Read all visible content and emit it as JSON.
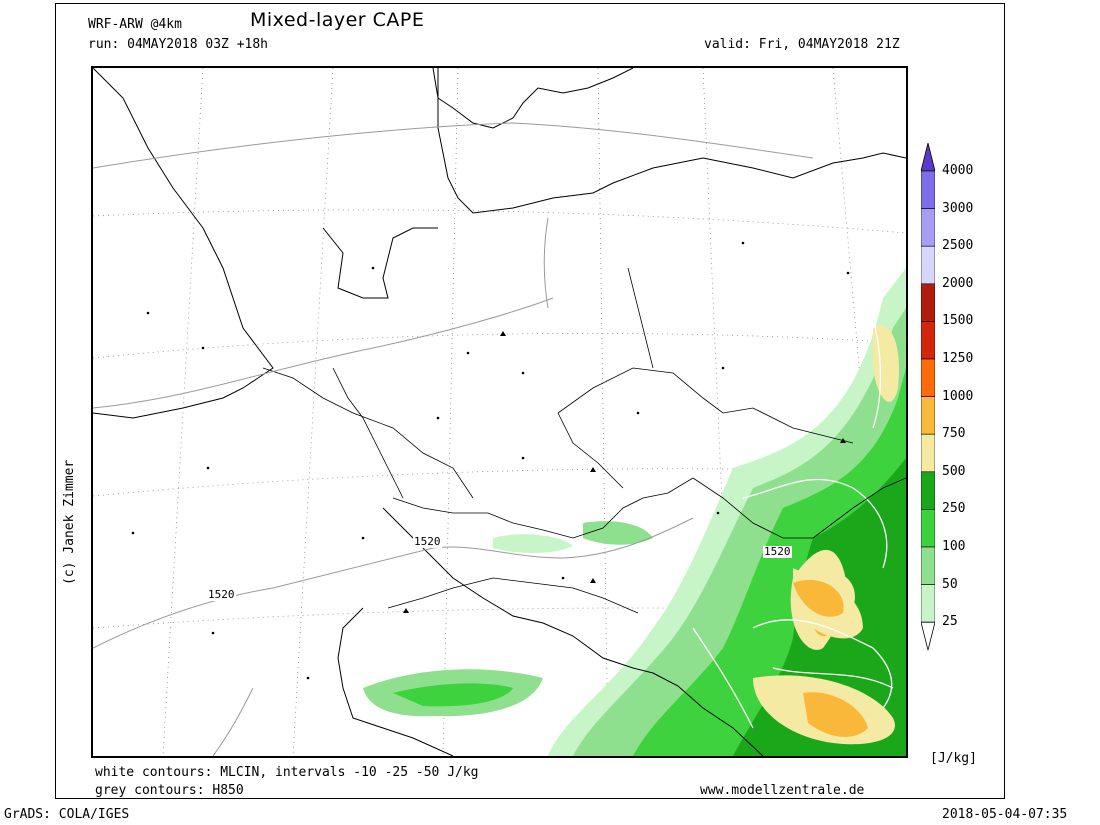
{
  "header": {
    "model": "WRF-ARW @4km",
    "title": "Mixed-layer CAPE",
    "run": "run: 04MAY2018 03Z +18h",
    "valid": "valid: Fri, 04MAY2018 21Z"
  },
  "footer": {
    "white_contours": "white contours: MLCIN, intervals -10 -25 -50 J/kg",
    "grey_contours": "grey contours: H850",
    "website": "www.modellzentrale.de",
    "grads": "GrADS: COLA/IGES",
    "timestamp": "2018-05-04-07:35"
  },
  "credit": "(c) Janek Zimmer",
  "map": {
    "contour_labels": [
      "1520",
      "1520",
      "1520"
    ]
  },
  "legend": {
    "unit": "[J/kg]",
    "levels": [
      {
        "value": "4000",
        "color": "#5a3cc8"
      },
      {
        "value": "3000",
        "color": "#7e6ee8"
      },
      {
        "value": "2500",
        "color": "#a99df3"
      },
      {
        "value": "2000",
        "color": "#d8d6fb"
      },
      {
        "value": "1500",
        "color": "#b01c0e"
      },
      {
        "value": "1250",
        "color": "#d2270c"
      },
      {
        "value": "1000",
        "color": "#ff6a0a"
      },
      {
        "value": "750",
        "color": "#fab83a"
      },
      {
        "value": "500",
        "color": "#f4eaa4"
      },
      {
        "value": "250",
        "color": "#1aa71a"
      },
      {
        "value": "100",
        "color": "#3ed23e"
      },
      {
        "value": "50",
        "color": "#8ee08e"
      },
      {
        "value": "25",
        "color": "#c8f5c8"
      }
    ]
  }
}
